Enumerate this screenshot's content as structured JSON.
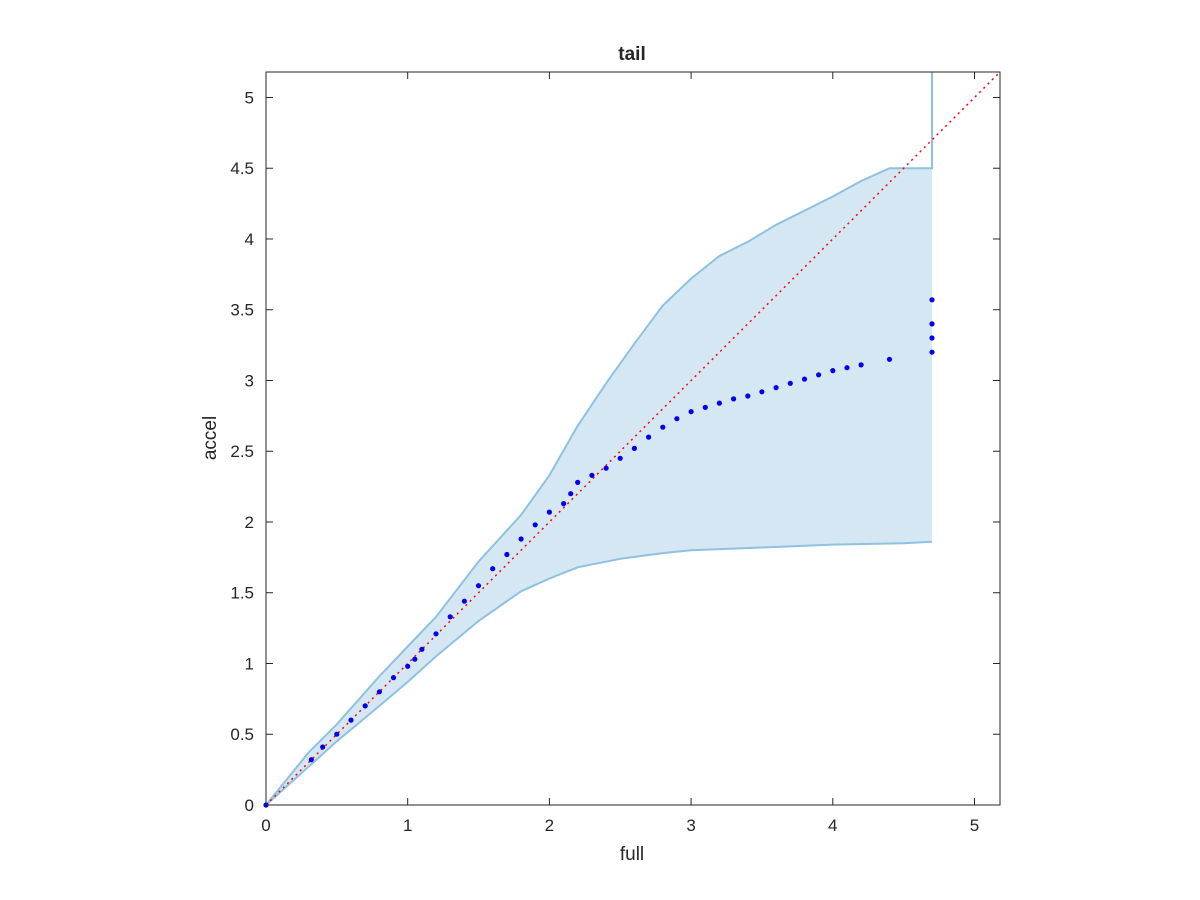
{
  "chart_data": {
    "type": "scatter",
    "title": "tail",
    "xlabel": "full",
    "ylabel": "accel",
    "xlim": [
      0,
      5.18
    ],
    "ylim": [
      0,
      5.18
    ],
    "xticks": [
      "0",
      "1",
      "2",
      "3",
      "4",
      "5"
    ],
    "yticks": [
      "0",
      "0.5",
      "1",
      "1.5",
      "2",
      "2.5",
      "3",
      "3.5",
      "4",
      "4.5",
      "5"
    ],
    "grid": false,
    "legend": "none",
    "colors": {
      "points": "#0000ee",
      "reference_line": "#ff0000",
      "band_fill": "#d6e7f4",
      "band_edge": "#8fc1e0",
      "axes": "#262626"
    },
    "series": [
      {
        "role": "quantile points",
        "x": [
          0,
          0.32,
          0.4,
          0.5,
          0.6,
          0.7,
          0.8,
          0.9,
          1.0,
          1.05,
          1.1,
          1.2,
          1.3,
          1.4,
          1.5,
          1.6,
          1.7,
          1.8,
          1.9,
          2.0,
          2.1,
          2.15,
          2.2,
          2.3,
          2.4,
          2.5,
          2.6,
          2.7,
          2.8,
          2.9,
          3.0,
          3.1,
          3.2,
          3.3,
          3.4,
          3.5,
          3.6,
          3.7,
          3.8,
          3.9,
          4.0,
          4.1,
          4.2,
          4.4,
          4.7,
          4.7,
          4.7,
          4.7
        ],
        "y": [
          0,
          0.32,
          0.41,
          0.5,
          0.6,
          0.7,
          0.8,
          0.9,
          0.98,
          1.03,
          1.1,
          1.21,
          1.33,
          1.44,
          1.55,
          1.67,
          1.77,
          1.88,
          1.98,
          2.07,
          2.13,
          2.2,
          2.28,
          2.33,
          2.38,
          2.45,
          2.52,
          2.6,
          2.67,
          2.73,
          2.78,
          2.81,
          2.84,
          2.87,
          2.89,
          2.92,
          2.95,
          2.98,
          3.01,
          3.04,
          3.07,
          3.09,
          3.11,
          3.15,
          3.2,
          3.3,
          3.4,
          3.57
        ]
      },
      {
        "role": "upper envelope",
        "x": [
          0,
          0.3,
          0.5,
          0.8,
          1.0,
          1.2,
          1.5,
          1.8,
          2.0,
          2.2,
          2.4,
          2.6,
          2.8,
          3.0,
          3.2,
          3.4,
          3.6,
          3.8,
          4.0,
          4.2,
          4.4,
          4.7,
          4.7
        ],
        "y": [
          0,
          0.37,
          0.57,
          0.91,
          1.12,
          1.33,
          1.72,
          2.05,
          2.33,
          2.68,
          2.98,
          3.26,
          3.53,
          3.72,
          3.88,
          3.98,
          4.1,
          4.2,
          4.3,
          4.41,
          4.5,
          4.5,
          5.18
        ]
      },
      {
        "role": "lower envelope",
        "x": [
          0,
          0.3,
          0.5,
          0.8,
          1.0,
          1.2,
          1.5,
          1.8,
          2.0,
          2.2,
          2.5,
          2.8,
          3.0,
          3.5,
          4.0,
          4.5,
          4.7
        ],
        "y": [
          0,
          0.27,
          0.45,
          0.7,
          0.87,
          1.05,
          1.3,
          1.51,
          1.6,
          1.68,
          1.74,
          1.78,
          1.8,
          1.82,
          1.84,
          1.85,
          1.86
        ]
      },
      {
        "role": "reference line",
        "x": [
          0,
          5.18
        ],
        "y": [
          0,
          5.18
        ]
      }
    ]
  }
}
